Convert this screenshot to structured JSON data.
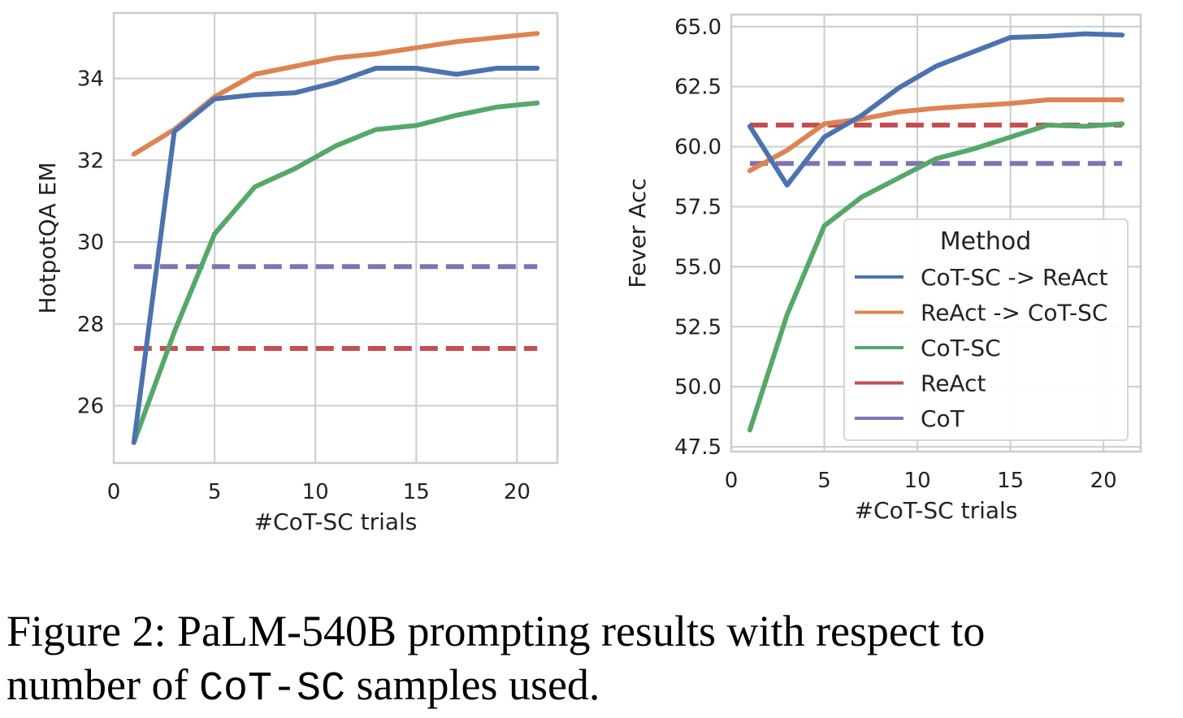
{
  "colors": {
    "cot_sc_react": "#4c72b0",
    "react_cot_sc": "#dd8452",
    "cot_sc": "#55a868",
    "react": "#c44e52",
    "cot": "#8172b3",
    "grid": "#cccccc",
    "frame": "#cccccc"
  },
  "chart_data": [
    {
      "type": "line",
      "xlabel": "#CoT-SC trials",
      "ylabel": "HotpotQA EM",
      "xlim": [
        0,
        22
      ],
      "ylim": [
        24.6,
        35.6
      ],
      "xticks": [
        0,
        5,
        10,
        15,
        20
      ],
      "yticks": [
        26,
        28,
        30,
        32,
        34
      ],
      "grid": true,
      "series": [
        {
          "key": "cot_sc_react",
          "style": "solid",
          "x": [
            1,
            3,
            5,
            7,
            9,
            11,
            13,
            15,
            17,
            19,
            21
          ],
          "y": [
            25.1,
            32.7,
            33.5,
            33.6,
            33.65,
            33.9,
            34.25,
            34.25,
            34.1,
            34.25,
            34.25
          ]
        },
        {
          "key": "react_cot_sc",
          "style": "solid",
          "x": [
            1,
            3,
            5,
            7,
            9,
            11,
            13,
            15,
            17,
            19,
            21
          ],
          "y": [
            32.15,
            32.75,
            33.55,
            34.1,
            34.3,
            34.5,
            34.6,
            34.75,
            34.9,
            35.0,
            35.1
          ]
        },
        {
          "key": "cot_sc",
          "style": "solid",
          "x": [
            1,
            3,
            5,
            7,
            9,
            11,
            13,
            15,
            17,
            19,
            21
          ],
          "y": [
            25.1,
            27.8,
            30.2,
            31.35,
            31.8,
            32.35,
            32.75,
            32.85,
            33.1,
            33.3,
            33.4
          ]
        },
        {
          "key": "react",
          "style": "dashed",
          "x": [
            1,
            21
          ],
          "y": [
            27.4,
            27.4
          ]
        },
        {
          "key": "cot",
          "style": "dashed",
          "x": [
            1,
            21
          ],
          "y": [
            29.4,
            29.4
          ]
        }
      ]
    },
    {
      "type": "line",
      "xlabel": "#CoT-SC trials",
      "ylabel": "Fever Acc",
      "xlim": [
        0,
        22
      ],
      "ylim": [
        47.3,
        65.5
      ],
      "xticks": [
        0,
        5,
        10,
        15,
        20
      ],
      "yticks": [
        47.5,
        50.0,
        52.5,
        55.0,
        57.5,
        60.0,
        62.5,
        65.0
      ],
      "ytick_labels": [
        "47.5",
        "50.0",
        "52.5",
        "55.0",
        "57.5",
        "60.0",
        "62.5",
        "65.0"
      ],
      "grid": true,
      "legend": {
        "title": "Method",
        "placement": "lower-right",
        "entries": [
          {
            "key": "cot_sc_react",
            "label": "CoT-SC -> ReAct"
          },
          {
            "key": "react_cot_sc",
            "label": "ReAct -> CoT-SC"
          },
          {
            "key": "cot_sc",
            "label": "CoT-SC"
          },
          {
            "key": "react",
            "label": "ReAct"
          },
          {
            "key": "cot",
            "label": "CoT"
          }
        ]
      },
      "series": [
        {
          "key": "cot_sc_react",
          "style": "solid",
          "x": [
            1,
            3,
            5,
            7,
            9,
            11,
            13,
            15,
            17,
            19,
            21
          ],
          "y": [
            60.85,
            58.4,
            60.4,
            61.3,
            62.45,
            63.35,
            63.95,
            64.55,
            64.6,
            64.7,
            64.65
          ]
        },
        {
          "key": "react_cot_sc",
          "style": "solid",
          "x": [
            1,
            3,
            5,
            7,
            9,
            11,
            13,
            15,
            17,
            19,
            21
          ],
          "y": [
            59.0,
            59.85,
            60.95,
            61.15,
            61.45,
            61.6,
            61.7,
            61.8,
            61.95,
            61.95,
            61.95
          ]
        },
        {
          "key": "cot_sc",
          "style": "solid",
          "x": [
            1,
            3,
            5,
            7,
            9,
            11,
            13,
            15,
            17,
            19,
            21
          ],
          "y": [
            48.2,
            53.0,
            56.7,
            57.9,
            58.7,
            59.5,
            59.9,
            60.4,
            60.9,
            60.85,
            60.95
          ]
        },
        {
          "key": "react",
          "style": "dashed",
          "x": [
            1,
            21
          ],
          "y": [
            60.9,
            60.9
          ]
        },
        {
          "key": "cot",
          "style": "dashed",
          "x": [
            1,
            21
          ],
          "y": [
            59.3,
            59.3
          ]
        }
      ]
    }
  ],
  "caption": {
    "line1": "Figure 2: PaLM-540B prompting results with respect to",
    "line2_prefix": "number of ",
    "line2_code": "CoT-SC",
    "line2_suffix": " samples used."
  }
}
